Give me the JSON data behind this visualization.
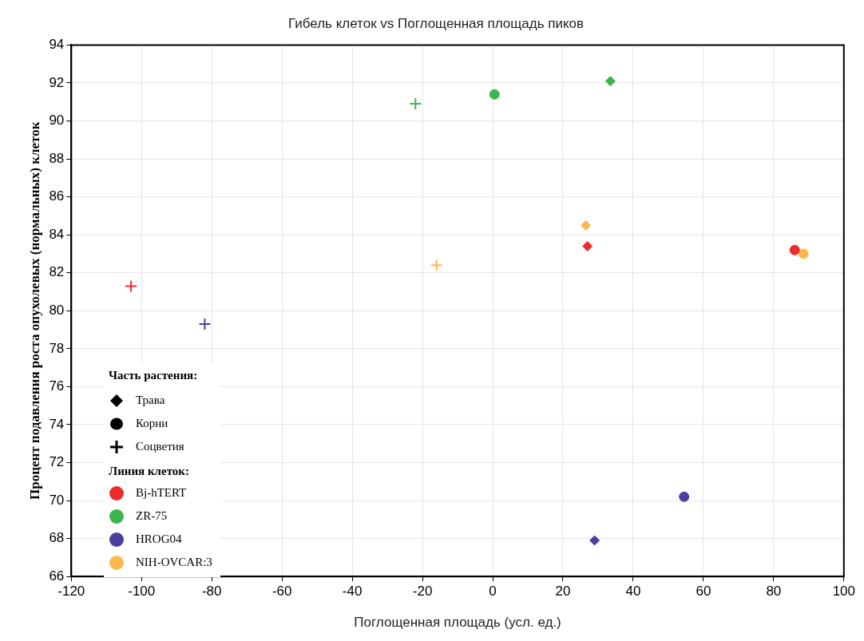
{
  "chart_data": {
    "type": "scatter",
    "title": "Гибель клеток vs Поглощенная площадь пиков",
    "xlabel": "Поглощенная площадь (усл. ед.)",
    "ylabel": "Процент подавления роста опухолевых (нормальных) клеток",
    "xlim": [
      -120,
      100
    ],
    "xticks": [
      -120,
      -100,
      -80,
      -60,
      -40,
      -20,
      0,
      20,
      40,
      60,
      80,
      100
    ],
    "ylim": [
      66,
      94
    ],
    "yticks": [
      66,
      68,
      70,
      72,
      74,
      76,
      78,
      80,
      82,
      84,
      86,
      88,
      90,
      92,
      94
    ],
    "grid": true,
    "legend": "bottom left",
    "legend_title": "Линия клеток:",
    "series": [
      {
        "name": "Bj-hTERT",
        "color": "#ee2a2a",
        "marker": [
          "diamond",
          "circle",
          "cross"
        ],
        "x": [
          27,
          86,
          -103
        ],
        "values": [
          83.4,
          83.2,
          81.3
        ]
      },
      {
        "name": "ZR-75",
        "color": "#3cb54a",
        "marker": [
          "diamond",
          "circle",
          "cross"
        ],
        "x": [
          33.5,
          0.5,
          -22
        ],
        "values": [
          92.1,
          91.4,
          90.9
        ]
      },
      {
        "name": "HROG04",
        "color": "#4a3fa0",
        "marker": [
          "diamond",
          "circle",
          "cross"
        ],
        "x": [
          29,
          54.5,
          -82
        ],
        "values": [
          67.9,
          70.2,
          79.3
        ]
      },
      {
        "name": "NIH-OVCAR:3",
        "color": "#fdb94e",
        "marker": [
          "diamond",
          "circle",
          "cross"
        ],
        "x": [
          26.5,
          88.5,
          -16
        ],
        "values": [
          84.5,
          83.0,
          82.4
        ]
      }
    ],
    "annotations": [
      "Часть растения:",
      "Трава",
      "Корни",
      "Соцветия"
    ]
  }
}
